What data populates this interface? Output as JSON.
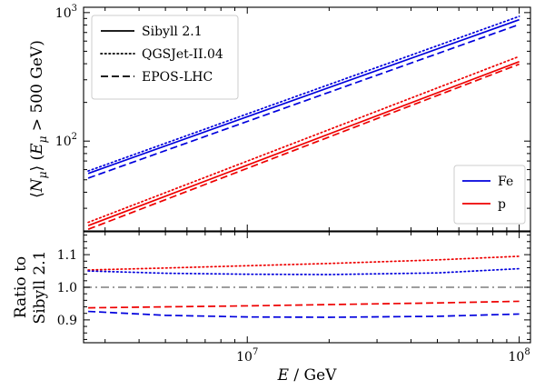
{
  "chart_data": [
    {
      "type": "line",
      "panel": "main",
      "xscale": "log",
      "yscale": "log",
      "xlim": [
        2500000,
        110000000
      ],
      "ylim": [
        20,
        1100
      ],
      "ylabel": "⟨N_μ⟩ (E_μ > 500 GeV)",
      "ylabel_parts": {
        "open": "⟨",
        "N": "N",
        "mu": "μ",
        "close": "⟩ (",
        "E": "E",
        "gt": " > 500 GeV)"
      },
      "yticks": [
        {
          "value": 100,
          "base": "10",
          "exp": "2"
        },
        {
          "value": 1000,
          "base": "10",
          "exp": "3"
        }
      ],
      "x": [
        2600000,
        100000000
      ],
      "series": [
        {
          "model": "Sibyll 2.1",
          "primary": "Fe",
          "style": "solid",
          "color": "#0000dd",
          "values": [
            56,
            880
          ]
        },
        {
          "model": "QGSJet-II.04",
          "primary": "Fe",
          "style": "dotted",
          "color": "#0000dd",
          "values": [
            58.5,
            935
          ]
        },
        {
          "model": "EPOS-LHC",
          "primary": "Fe",
          "style": "dashed",
          "color": "#0000dd",
          "values": [
            51.5,
            808
          ]
        },
        {
          "model": "Sibyll 2.1",
          "primary": "p",
          "style": "solid",
          "color": "#ee0000",
          "values": [
            22,
            415
          ]
        },
        {
          "model": "QGSJet-II.04",
          "primary": "p",
          "style": "dotted",
          "color": "#ee0000",
          "values": [
            23.3,
            456
          ]
        },
        {
          "model": "EPOS-LHC",
          "primary": "p",
          "style": "dashed",
          "color": "#ee0000",
          "values": [
            20.6,
            397
          ]
        }
      ],
      "legend_models": {
        "placement": "top-left",
        "entries": [
          {
            "label": "Sibyll 2.1",
            "style": "solid"
          },
          {
            "label": "QGSJet-II.04",
            "style": "dotted"
          },
          {
            "label": "EPOS-LHC",
            "style": "dashed"
          }
        ]
      },
      "legend_primaries": {
        "placement": "bottom-right",
        "entries": [
          {
            "label": "Fe",
            "color": "#0000dd"
          },
          {
            "label": "p",
            "color": "#ee0000"
          }
        ]
      }
    },
    {
      "type": "line",
      "panel": "ratio",
      "xscale": "log",
      "xlim": [
        2500000,
        110000000
      ],
      "ylim": [
        0.83,
        1.17
      ],
      "ylabel_line1": "Ratio to",
      "ylabel_line2": "Sibyll 2.1",
      "xlabel_var": "E",
      "xlabel_unit": " / GeV",
      "yticks": [
        {
          "value": 0.9,
          "label": "0.9"
        },
        {
          "value": 1.0,
          "label": "1.0"
        },
        {
          "value": 1.1,
          "label": "1.1"
        }
      ],
      "xticks": [
        {
          "value": 10000000,
          "base": "10",
          "exp": "7"
        },
        {
          "value": 100000000,
          "base": "10",
          "exp": "8"
        }
      ],
      "reference": {
        "value": 1.0,
        "style": "dashdot",
        "color": "#7f7f7f"
      },
      "series": [
        {
          "model": "QGSJet-II.04",
          "primary": "p",
          "style": "dotted",
          "color": "#ee0000",
          "x": [
            2600000,
            5000000,
            10000000,
            20000000,
            50000000,
            100000000
          ],
          "values": [
            1.053,
            1.059,
            1.066,
            1.073,
            1.084,
            1.095
          ]
        },
        {
          "model": "QGSJet-II.04",
          "primary": "Fe",
          "style": "dotted",
          "color": "#0000dd",
          "x": [
            2600000,
            5000000,
            10000000,
            20000000,
            50000000,
            100000000
          ],
          "values": [
            1.05,
            1.043,
            1.04,
            1.039,
            1.044,
            1.057
          ]
        },
        {
          "model": "EPOS-LHC",
          "primary": "p",
          "style": "dashed",
          "color": "#ee0000",
          "x": [
            2600000,
            5000000,
            10000000,
            20000000,
            50000000,
            100000000
          ],
          "values": [
            0.937,
            0.94,
            0.943,
            0.947,
            0.952,
            0.957
          ]
        },
        {
          "model": "EPOS-LHC",
          "primary": "Fe",
          "style": "dashed",
          "color": "#0000dd",
          "x": [
            2600000,
            5000000,
            10000000,
            20000000,
            50000000,
            100000000
          ],
          "values": [
            0.926,
            0.914,
            0.909,
            0.908,
            0.911,
            0.918
          ]
        }
      ]
    }
  ]
}
